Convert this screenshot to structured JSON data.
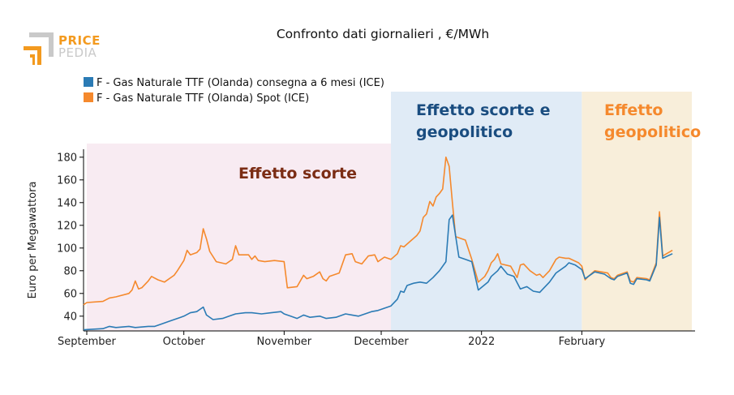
{
  "logo": {
    "word1": "PRICE",
    "word2": "PEDIA"
  },
  "chart_data": {
    "type": "line",
    "title": "Confronto dati giornalieri , €/MWh",
    "ylabel": "Euro per Megawattora",
    "xlabel": "",
    "ylim": [
      27,
      187
    ],
    "yticks": [
      40,
      60,
      80,
      100,
      120,
      140,
      160,
      180
    ],
    "xlim": [
      "2021-08-31",
      "2022-03-08"
    ],
    "xticks": [
      {
        "date": "2021-09-01",
        "label": "September"
      },
      {
        "date": "2021-10-01",
        "label": "October"
      },
      {
        "date": "2021-11-01",
        "label": "November"
      },
      {
        "date": "2021-12-01",
        "label": "December"
      },
      {
        "date": "2022-01-01",
        "label": "2022"
      },
      {
        "date": "2022-02-01",
        "label": "February"
      }
    ],
    "legend": {
      "placement": "top-left"
    },
    "regions": [
      {
        "label": "Effetto scorte",
        "start": "2021-09-01",
        "end": "2021-12-04",
        "fill": "#f8ebf2",
        "text_color": "#7b2c14"
      },
      {
        "label": "Effetto scorte e geopolitico",
        "start": "2021-12-04",
        "end": "2022-02-01",
        "fill": "#e0ebf6",
        "text_color": "#1a4d80"
      },
      {
        "label": "Effetto geopolitico",
        "start": "2022-02-01",
        "end": "2022-03-07",
        "fill": "#f8eeda",
        "text_color": "#f5892d"
      }
    ],
    "series": [
      {
        "name": "F - Gas Naturale TTF (Olanda) consegna a 6 mesi (ICE)",
        "color": "#2b7bb5",
        "points": [
          [
            "2021-08-31",
            28
          ],
          [
            "2021-09-06",
            29
          ],
          [
            "2021-09-08",
            31
          ],
          [
            "2021-09-10",
            30
          ],
          [
            "2021-09-14",
            31
          ],
          [
            "2021-09-16",
            30
          ],
          [
            "2021-09-20",
            31
          ],
          [
            "2021-09-22",
            31
          ],
          [
            "2021-09-24",
            33
          ],
          [
            "2021-09-27",
            36
          ],
          [
            "2021-09-29",
            38
          ],
          [
            "2021-09-30",
            39
          ],
          [
            "2021-10-01",
            40
          ],
          [
            "2021-10-03",
            43
          ],
          [
            "2021-10-05",
            44
          ],
          [
            "2021-10-06",
            46
          ],
          [
            "2021-10-07",
            48
          ],
          [
            "2021-10-08",
            41
          ],
          [
            "2021-10-10",
            37
          ],
          [
            "2021-10-13",
            38
          ],
          [
            "2021-10-15",
            40
          ],
          [
            "2021-10-17",
            42
          ],
          [
            "2021-10-20",
            43
          ],
          [
            "2021-10-22",
            43
          ],
          [
            "2021-10-25",
            42
          ],
          [
            "2021-10-28",
            43
          ],
          [
            "2021-10-31",
            44
          ],
          [
            "2021-11-01",
            42
          ],
          [
            "2021-11-03",
            40
          ],
          [
            "2021-11-05",
            38
          ],
          [
            "2021-11-07",
            41
          ],
          [
            "2021-11-09",
            39
          ],
          [
            "2021-11-12",
            40
          ],
          [
            "2021-11-14",
            38
          ],
          [
            "2021-11-17",
            39
          ],
          [
            "2021-11-19",
            41
          ],
          [
            "2021-11-20",
            42
          ],
          [
            "2021-11-22",
            41
          ],
          [
            "2021-11-24",
            40
          ],
          [
            "2021-11-26",
            42
          ],
          [
            "2021-11-28",
            44
          ],
          [
            "2021-11-30",
            45
          ],
          [
            "2021-12-02",
            47
          ],
          [
            "2021-12-04",
            49
          ],
          [
            "2021-12-06",
            55
          ],
          [
            "2021-12-07",
            62
          ],
          [
            "2021-12-08",
            61
          ],
          [
            "2021-12-09",
            67
          ],
          [
            "2021-12-11",
            69
          ],
          [
            "2021-12-13",
            70
          ],
          [
            "2021-12-15",
            69
          ],
          [
            "2021-12-17",
            74
          ],
          [
            "2021-12-19",
            80
          ],
          [
            "2021-12-21",
            88
          ],
          [
            "2021-12-22",
            125
          ],
          [
            "2021-12-23",
            129
          ],
          [
            "2021-12-25",
            92
          ],
          [
            "2021-12-27",
            90
          ],
          [
            "2021-12-29",
            88
          ],
          [
            "2021-12-31",
            63
          ],
          [
            "2022-01-03",
            70
          ],
          [
            "2022-01-04",
            75
          ],
          [
            "2022-01-06",
            80
          ],
          [
            "2022-01-07",
            84
          ],
          [
            "2022-01-09",
            77
          ],
          [
            "2022-01-11",
            75
          ],
          [
            "2022-01-13",
            64
          ],
          [
            "2022-01-15",
            66
          ],
          [
            "2022-01-17",
            62
          ],
          [
            "2022-01-19",
            61
          ],
          [
            "2022-01-20",
            64
          ],
          [
            "2022-01-22",
            70
          ],
          [
            "2022-01-24",
            78
          ],
          [
            "2022-01-27",
            84
          ],
          [
            "2022-01-28",
            87
          ],
          [
            "2022-01-30",
            85
          ],
          [
            "2022-02-01",
            81
          ],
          [
            "2022-02-02",
            73
          ],
          [
            "2022-02-03",
            75
          ],
          [
            "2022-02-05",
            79
          ],
          [
            "2022-02-08",
            77
          ],
          [
            "2022-02-10",
            73
          ],
          [
            "2022-02-11",
            72
          ],
          [
            "2022-02-12",
            75
          ],
          [
            "2022-02-15",
            78
          ],
          [
            "2022-02-16",
            69
          ],
          [
            "2022-02-17",
            68
          ],
          [
            "2022-02-18",
            73
          ],
          [
            "2022-02-21",
            72
          ],
          [
            "2022-02-22",
            71
          ],
          [
            "2022-02-24",
            85
          ],
          [
            "2022-02-25",
            127
          ],
          [
            "2022-02-26",
            91
          ],
          [
            "2022-03-01",
            95
          ]
        ]
      },
      {
        "name": "F - Gas Naturale TTF (Olanda) Spot (ICE)",
        "color": "#f5892d",
        "points": [
          [
            "2021-08-31",
            50
          ],
          [
            "2021-09-01",
            52
          ],
          [
            "2021-09-06",
            53
          ],
          [
            "2021-09-08",
            56
          ],
          [
            "2021-09-10",
            57
          ],
          [
            "2021-09-14",
            60
          ],
          [
            "2021-09-15",
            63
          ],
          [
            "2021-09-16",
            71
          ],
          [
            "2021-09-17",
            64
          ],
          [
            "2021-09-18",
            65
          ],
          [
            "2021-09-20",
            71
          ],
          [
            "2021-09-21",
            75
          ],
          [
            "2021-09-23",
            72
          ],
          [
            "2021-09-25",
            70
          ],
          [
            "2021-09-28",
            76
          ],
          [
            "2021-09-29",
            80
          ],
          [
            "2021-10-01",
            89
          ],
          [
            "2021-10-02",
            98
          ],
          [
            "2021-10-03",
            94
          ],
          [
            "2021-10-05",
            96
          ],
          [
            "2021-10-06",
            99
          ],
          [
            "2021-10-07",
            117
          ],
          [
            "2021-10-08",
            108
          ],
          [
            "2021-10-09",
            97
          ],
          [
            "2021-10-11",
            88
          ],
          [
            "2021-10-14",
            86
          ],
          [
            "2021-10-16",
            90
          ],
          [
            "2021-10-17",
            102
          ],
          [
            "2021-10-18",
            94
          ],
          [
            "2021-10-21",
            94
          ],
          [
            "2021-10-22",
            90
          ],
          [
            "2021-10-23",
            93
          ],
          [
            "2021-10-24",
            89
          ],
          [
            "2021-10-26",
            88
          ],
          [
            "2021-10-29",
            89
          ],
          [
            "2021-11-01",
            88
          ],
          [
            "2021-11-02",
            65
          ],
          [
            "2021-11-05",
            66
          ],
          [
            "2021-11-07",
            76
          ],
          [
            "2021-11-08",
            73
          ],
          [
            "2021-11-10",
            75
          ],
          [
            "2021-11-12",
            79
          ],
          [
            "2021-11-13",
            73
          ],
          [
            "2021-11-14",
            71
          ],
          [
            "2021-11-15",
            75
          ],
          [
            "2021-11-18",
            78
          ],
          [
            "2021-11-20",
            94
          ],
          [
            "2021-11-22",
            95
          ],
          [
            "2021-11-23",
            88
          ],
          [
            "2021-11-25",
            86
          ],
          [
            "2021-11-27",
            93
          ],
          [
            "2021-11-29",
            94
          ],
          [
            "2021-11-30",
            88
          ],
          [
            "2021-12-02",
            92
          ],
          [
            "2021-12-04",
            90
          ],
          [
            "2021-12-06",
            95
          ],
          [
            "2021-12-07",
            102
          ],
          [
            "2021-12-08",
            101
          ],
          [
            "2021-12-10",
            106
          ],
          [
            "2021-12-12",
            111
          ],
          [
            "2021-12-13",
            115
          ],
          [
            "2021-12-14",
            127
          ],
          [
            "2021-12-15",
            130
          ],
          [
            "2021-12-16",
            141
          ],
          [
            "2021-12-17",
            137
          ],
          [
            "2021-12-18",
            145
          ],
          [
            "2021-12-19",
            148
          ],
          [
            "2021-12-20",
            152
          ],
          [
            "2021-12-21",
            180
          ],
          [
            "2021-12-22",
            172
          ],
          [
            "2021-12-23",
            140
          ],
          [
            "2021-12-24",
            110
          ],
          [
            "2021-12-27",
            107
          ],
          [
            "2021-12-29",
            90
          ],
          [
            "2021-12-31",
            70
          ],
          [
            "2022-01-02",
            75
          ],
          [
            "2022-01-03",
            80
          ],
          [
            "2022-01-04",
            87
          ],
          [
            "2022-01-05",
            90
          ],
          [
            "2022-01-06",
            95
          ],
          [
            "2022-01-07",
            86
          ],
          [
            "2022-01-10",
            84
          ],
          [
            "2022-01-12",
            74
          ],
          [
            "2022-01-13",
            85
          ],
          [
            "2022-01-14",
            86
          ],
          [
            "2022-01-16",
            80
          ],
          [
            "2022-01-18",
            76
          ],
          [
            "2022-01-19",
            77
          ],
          [
            "2022-01-20",
            74
          ],
          [
            "2022-01-22",
            80
          ],
          [
            "2022-01-24",
            90
          ],
          [
            "2022-01-25",
            92
          ],
          [
            "2022-01-27",
            91
          ],
          [
            "2022-01-28",
            91
          ],
          [
            "2022-01-31",
            87
          ],
          [
            "2022-02-01",
            84
          ],
          [
            "2022-02-02",
            72
          ],
          [
            "2022-02-03",
            75
          ],
          [
            "2022-02-05",
            80
          ],
          [
            "2022-02-09",
            78
          ],
          [
            "2022-02-10",
            74
          ],
          [
            "2022-02-11",
            73
          ],
          [
            "2022-02-12",
            76
          ],
          [
            "2022-02-15",
            79
          ],
          [
            "2022-02-16",
            71
          ],
          [
            "2022-02-17",
            70
          ],
          [
            "2022-02-18",
            74
          ],
          [
            "2022-02-21",
            73
          ],
          [
            "2022-02-22",
            72
          ],
          [
            "2022-02-24",
            87
          ],
          [
            "2022-02-25",
            132
          ],
          [
            "2022-02-26",
            93
          ],
          [
            "2022-03-01",
            98
          ]
        ]
      }
    ]
  }
}
